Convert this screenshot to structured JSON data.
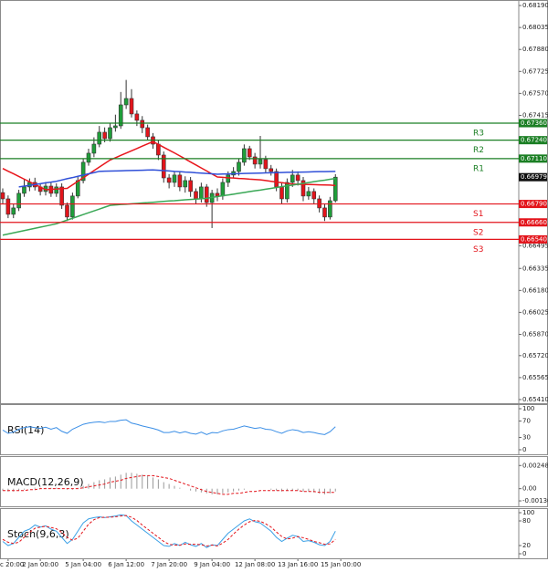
{
  "chart_data": [
    {
      "type": "candlestick",
      "categories": [
        null,
        "c 20:00",
        null,
        null,
        null,
        null,
        null,
        "2 Jan 00:00",
        null,
        null,
        null,
        null,
        null,
        null,
        null,
        "5 Jan 04:00",
        null,
        null,
        null,
        null,
        null,
        null,
        null,
        "6 Jan 12:00",
        null,
        null,
        null,
        null,
        null,
        null,
        null,
        "7 Jan 20:00",
        null,
        null,
        null,
        null,
        null,
        null,
        null,
        "9 Jan 04:00",
        null,
        null,
        null,
        null,
        null,
        null,
        null,
        "12 Jan 08:00",
        null,
        null,
        null,
        null,
        null,
        null,
        null,
        "13 Jan 16:00",
        null,
        null,
        null,
        null,
        null,
        null,
        null,
        "15 Jan 00:00"
      ],
      "open": [
        0.6687,
        0.66826,
        0.66717,
        0.66762,
        0.66865,
        0.6691,
        0.66942,
        0.6691,
        0.66878,
        0.66916,
        0.66865,
        0.6691,
        0.66781,
        0.66698,
        0.66846,
        0.66955,
        0.67084,
        0.67148,
        0.67212,
        0.67296,
        0.67251,
        0.67328,
        0.67341,
        0.67489,
        0.67534,
        0.67425,
        0.6738,
        0.67328,
        0.67264,
        0.67212,
        0.67135,
        0.66974,
        0.66942,
        0.66994,
        0.6691,
        0.66955,
        0.66878,
        0.66826,
        0.6691,
        0.668,
        0.66865,
        0.66846,
        0.66942,
        0.66994,
        0.67019,
        0.67084,
        0.6718,
        0.67122,
        0.67071,
        0.67103,
        0.67039,
        0.67019,
        0.6691,
        0.66826,
        0.66942,
        0.66994,
        0.66955,
        0.66846,
        0.66878,
        0.66826,
        0.66762,
        0.66698,
        0.66813,
        null
      ],
      "high": [
        0.669,
        0.6685,
        0.6679,
        0.6689,
        0.6696,
        0.6697,
        0.66975,
        0.66935,
        0.66945,
        0.6694,
        0.66935,
        0.66935,
        0.668,
        0.6687,
        0.6698,
        0.6711,
        0.6718,
        0.6726,
        0.6734,
        0.6733,
        0.6736,
        0.6742,
        0.6758,
        0.67665,
        0.676,
        0.6745,
        0.6741,
        0.6735,
        0.6729,
        0.6724,
        0.6716,
        0.67,
        0.6702,
        0.6702,
        0.66985,
        0.6698,
        0.669,
        0.6694,
        0.6693,
        0.6689,
        0.669,
        0.6697,
        0.6702,
        0.6705,
        0.6711,
        0.6721,
        0.672,
        0.6715,
        0.6727,
        0.6713,
        0.67065,
        0.6704,
        0.6694,
        0.6697,
        0.6703,
        0.6702,
        0.6698,
        0.6691,
        0.669,
        0.6685,
        0.6679,
        0.6684,
        0.67,
        null
      ],
      "low": [
        0.6679,
        0.6669,
        0.6669,
        0.6674,
        0.6684,
        0.6688,
        0.66885,
        0.6685,
        0.6685,
        0.6684,
        0.6684,
        0.66755,
        0.6667,
        0.6668,
        0.6683,
        0.66935,
        0.6706,
        0.6712,
        0.6719,
        0.67225,
        0.6723,
        0.673,
        0.6732,
        0.6746,
        0.674,
        0.6734,
        0.6729,
        0.6724,
        0.6718,
        0.671,
        0.6694,
        0.669,
        0.6691,
        0.6688,
        0.6687,
        0.6684,
        0.6679,
        0.668,
        0.6677,
        0.6662,
        0.6681,
        0.6682,
        0.6691,
        0.6697,
        0.6699,
        0.6706,
        0.671,
        0.6704,
        0.6704,
        0.6701,
        0.6699,
        0.6688,
        0.6679,
        0.668,
        0.6691,
        0.6692,
        0.6681,
        0.6682,
        0.6679,
        0.6673,
        0.6667,
        0.6668,
        0.668,
        null
      ],
      "close": [
        0.66826,
        0.66717,
        0.66762,
        0.66865,
        0.6691,
        0.66942,
        0.6691,
        0.66878,
        0.66916,
        0.66865,
        0.6691,
        0.66781,
        0.66698,
        0.66846,
        0.66955,
        0.67084,
        0.67148,
        0.67212,
        0.67296,
        0.67251,
        0.67328,
        0.67341,
        0.67489,
        0.67534,
        0.67425,
        0.6738,
        0.67328,
        0.67264,
        0.67212,
        0.67135,
        0.66974,
        0.66942,
        0.66994,
        0.6691,
        0.66955,
        0.66878,
        0.66826,
        0.6691,
        0.668,
        0.66865,
        0.66846,
        0.66942,
        0.66994,
        0.67019,
        0.67084,
        0.6718,
        0.67122,
        0.67071,
        0.67103,
        0.67039,
        0.67019,
        0.6691,
        0.66826,
        0.66942,
        0.66994,
        0.66955,
        0.66846,
        0.66878,
        0.66826,
        0.66762,
        0.66698,
        0.66813,
        0.66979,
        null
      ],
      "up_color": "#1f9e3a",
      "down_color": "#e3141b",
      "moving_averages": [
        {
          "color": "#e8161c",
          "values": [
            0.6704,
            0.67021,
            0.67003,
            0.66984,
            0.66965,
            0.66946,
            0.66928,
            0.66909,
            0.6689,
            0.66893,
            0.66895,
            0.66898,
            0.669,
            0.66925,
            0.6695,
            0.66975,
            0.67,
            0.67025,
            0.6705,
            0.67075,
            0.671,
            0.67116,
            0.67133,
            0.67149,
            0.67165,
            0.67181,
            0.67198,
            0.67214,
            0.6723,
            0.6721,
            0.6719,
            0.6717,
            0.6715,
            0.67129,
            0.67108,
            0.67086,
            0.67065,
            0.67044,
            0.67023,
            0.67001,
            0.6698,
            0.66978,
            0.66975,
            0.66973,
            0.6697,
            0.66968,
            0.66965,
            0.66963,
            0.6696,
            0.66955,
            0.6695,
            0.66945,
            0.6694,
            0.66935,
            0.6693,
            0.66929,
            0.66928,
            0.66927,
            0.66926,
            0.66925,
            0.66924,
            0.66923,
            0.6692,
            null
          ]
        },
        {
          "color": "#3050d8",
          "values": [
            null,
            null,
            null,
            0.6691,
            0.66916,
            0.66921,
            0.66927,
            0.66933,
            0.66939,
            0.66944,
            0.6695,
            0.66959,
            0.66968,
            0.66976,
            0.66985,
            0.66994,
            0.67003,
            0.67011,
            0.6702,
            0.67021,
            0.67022,
            0.67023,
            0.67024,
            0.67025,
            0.67026,
            0.67027,
            0.67028,
            0.67029,
            0.6703,
            0.67028,
            0.67025,
            0.67023,
            0.6702,
            0.67018,
            0.67015,
            0.67013,
            0.6701,
            0.67008,
            0.67005,
            0.67003,
            0.67,
            0.67001,
            0.67002,
            0.67003,
            0.67004,
            0.67005,
            0.67006,
            0.67007,
            0.67008,
            0.67009,
            0.6701,
            0.67011,
            0.67012,
            0.67013,
            0.67013,
            0.67014,
            0.67015,
            0.67016,
            0.67017,
            0.67018,
            0.67018,
            0.67019,
            0.6702,
            null
          ]
        },
        {
          "color": "#3aa856",
          "values": [
            0.6657,
            0.66578,
            0.66586,
            0.66594,
            0.66602,
            0.6661,
            0.66618,
            0.66626,
            0.66634,
            0.66642,
            0.6665,
            0.66663,
            0.66676,
            0.66689,
            0.66702,
            0.66715,
            0.66728,
            0.66741,
            0.66754,
            0.66767,
            0.6678,
            0.66783,
            0.66786,
            0.66788,
            0.66791,
            0.66794,
            0.66797,
            0.66799,
            0.66802,
            0.66805,
            0.66808,
            0.66811,
            0.66813,
            0.66816,
            0.66819,
            0.66822,
            0.66824,
            0.66827,
            0.6683,
            0.66836,
            0.66842,
            0.66848,
            0.66853,
            0.66859,
            0.66865,
            0.66871,
            0.66877,
            0.66883,
            0.66888,
            0.66894,
            0.669,
            0.66906,
            0.66912,
            0.66918,
            0.66923,
            0.66929,
            0.66935,
            0.66941,
            0.66947,
            0.66953,
            0.66958,
            0.66964,
            0.6697,
            null
          ]
        }
      ],
      "levels": [
        {
          "label": "R3",
          "value": 0.6736,
          "value_label": "0.67360",
          "color": "#1b7f24"
        },
        {
          "label": "R2",
          "value": 0.6724,
          "value_label": "0.67240",
          "color": "#1b7f24"
        },
        {
          "label": "R1",
          "value": 0.6711,
          "value_label": "0.67110",
          "color": "#1b7f24"
        },
        {
          "label": "S1",
          "value": 0.6679,
          "value_label": "0.66790",
          "color": "#e3141b"
        },
        {
          "label": "S2",
          "value": 0.6666,
          "value_label": "0.66660",
          "color": "#e3141b"
        },
        {
          "label": "S3",
          "value": 0.6654,
          "value_label": "0.66540",
          "color": "#e3141b"
        }
      ],
      "last_price": {
        "value": 0.66979,
        "label": "0.66979"
      },
      "ylim": [
        0.65384,
        0.68229
      ],
      "yticks": [
        {
          "value": 0.6819,
          "label": "0.68190"
        },
        {
          "value": 0.68035,
          "label": "0.68035"
        },
        {
          "value": 0.6788,
          "label": "0.67880"
        },
        {
          "value": 0.67725,
          "label": "0.67725"
        },
        {
          "value": 0.6757,
          "label": "0.67570"
        },
        {
          "value": 0.67415,
          "label": "0.67415"
        },
        {
          "value": 0.66495,
          "label": "0.66495"
        },
        {
          "value": 0.66335,
          "label": "0.66335"
        },
        {
          "value": 0.6618,
          "label": "0.66180"
        },
        {
          "value": 0.66025,
          "label": "0.66025"
        },
        {
          "value": 0.6587,
          "label": "0.65870"
        },
        {
          "value": 0.6572,
          "label": "0.65720"
        },
        {
          "value": 0.65565,
          "label": "0.65565"
        },
        {
          "value": 0.6541,
          "label": "0.65410"
        }
      ]
    },
    {
      "type": "line",
      "title": "RSI(14)",
      "color": "#3a8ee6",
      "values": [
        48,
        40,
        43,
        50,
        54,
        56,
        54,
        52,
        55,
        50,
        54,
        45,
        40,
        50,
        56,
        62,
        65,
        67,
        68,
        66,
        69,
        69,
        72,
        73,
        65,
        62,
        58,
        55,
        52,
        48,
        42,
        42,
        45,
        41,
        44,
        40,
        38,
        43,
        37,
        42,
        41,
        46,
        49,
        50,
        54,
        58,
        55,
        52,
        54,
        50,
        49,
        44,
        40,
        46,
        49,
        47,
        42,
        44,
        42,
        39,
        37,
        44,
        56,
        null
      ],
      "ylim": [
        0,
        100
      ],
      "yticks": [
        100,
        70,
        30,
        0
      ]
    },
    {
      "type": "bar",
      "title": "MACD(12,26,9)",
      "color": "#9a9a9a",
      "values": [
        -0.0002,
        -0.0003,
        -0.0003,
        -0.0002,
        -0.0001,
        0,
        0.0001,
        0.0001,
        0.0001,
        0.0001,
        0.0001,
        0,
        -0.0001,
        -0.0001,
        0.0001,
        0.0003,
        0.0005,
        0.0007,
        0.0009,
        0.001,
        0.0012,
        0.0013,
        0.0015,
        0.0017,
        0.0017,
        0.0016,
        0.0015,
        0.0014,
        0.0012,
        0.001,
        0.0007,
        0.0005,
        0.0003,
        0.0001,
        0,
        -0.0002,
        -0.0003,
        -0.0004,
        -0.0005,
        -0.0006,
        -0.0006,
        -0.0005,
        -0.0004,
        -0.0003,
        -0.0002,
        -0.0001,
        0,
        0,
        0,
        0,
        -0.0001,
        -0.0002,
        -0.0003,
        -0.0002,
        -0.0002,
        -0.0002,
        -0.0003,
        -0.0003,
        -0.0004,
        -0.0005,
        -0.0006,
        -0.0005,
        -0.0003,
        null
      ],
      "signal": {
        "color": "#e3141b",
        "dashed": true,
        "values": [
          -0.0002,
          -0.0002,
          -0.0002,
          -0.0002,
          -0.0002,
          -0.0001,
          -0.0001,
          0,
          0,
          0,
          0,
          0,
          0,
          0,
          0,
          0.0001,
          0.0002,
          0.0003,
          0.0004,
          0.0005,
          0.0007,
          0.0008,
          0.0009,
          0.0011,
          0.0012,
          0.0013,
          0.0014,
          0.0014,
          0.0014,
          0.0013,
          0.0012,
          0.0011,
          0.0009,
          0.0007,
          0.0005,
          0.0003,
          0.0001,
          -0.0001,
          -0.0003,
          -0.0004,
          -0.0005,
          -0.0006,
          -0.0006,
          -0.0005,
          -0.0005,
          -0.0004,
          -0.0003,
          -0.0003,
          -0.0002,
          -0.0002,
          -0.0002,
          -0.0002,
          -0.0002,
          -0.0002,
          -0.0002,
          -0.0002,
          -0.0003,
          -0.0003,
          -0.0003,
          -0.0004,
          -0.0004,
          -0.0004,
          -0.0004,
          null
        ]
      },
      "ylim": [
        -0.0014,
        0.003
      ],
      "yticks": [
        {
          "value": 0.002484,
          "label": "0.002484"
        },
        {
          "value": 0,
          "label": "0.00"
        },
        {
          "value": -0.001306,
          "label": "-0.001306"
        }
      ]
    },
    {
      "type": "line",
      "title": "Stoch(9,6,3)",
      "series": [
        {
          "color": "#3aa0e6",
          "values": [
            30,
            20,
            25,
            40,
            55,
            60,
            70,
            65,
            68,
            60,
            55,
            40,
            25,
            35,
            55,
            75,
            85,
            88,
            90,
            88,
            90,
            92,
            95,
            93,
            80,
            70,
            60,
            50,
            40,
            30,
            20,
            18,
            25,
            20,
            28,
            22,
            18,
            25,
            15,
            22,
            20,
            35,
            50,
            60,
            70,
            80,
            85,
            78,
            75,
            65,
            55,
            40,
            30,
            38,
            45,
            42,
            30,
            32,
            28,
            22,
            20,
            30,
            55,
            null
          ]
        },
        {
          "color": "#e3141b",
          "dashed": true,
          "values": [
            35,
            28,
            25,
            28,
            40,
            52,
            62,
            65,
            67,
            64,
            61,
            52,
            40,
            33,
            38,
            55,
            72,
            83,
            88,
            89,
            89,
            90,
            92,
            93,
            89,
            81,
            70,
            60,
            50,
            40,
            30,
            23,
            21,
            21,
            24,
            23,
            23,
            22,
            19,
            21,
            19,
            26,
            35,
            48,
            60,
            70,
            78,
            81,
            79,
            73,
            65,
            53,
            42,
            36,
            38,
            42,
            39,
            35,
            30,
            27,
            23,
            24,
            35,
            null
          ]
        }
      ],
      "ylim": [
        0,
        100
      ],
      "yticks": [
        100,
        80,
        20,
        0
      ]
    }
  ]
}
